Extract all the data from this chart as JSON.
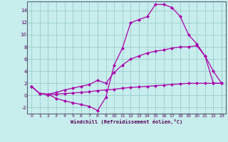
{
  "bg_color": "#c8eded",
  "line_color": "#aa00aa",
  "grid_color": "#99cccc",
  "xlim": [
    -0.5,
    23.5
  ],
  "ylim": [
    -3.0,
    15.5
  ],
  "xticks": [
    0,
    1,
    2,
    3,
    4,
    5,
    6,
    7,
    8,
    9,
    10,
    11,
    12,
    13,
    14,
    15,
    16,
    17,
    18,
    19,
    20,
    21,
    22,
    23
  ],
  "yticks": [
    -2,
    0,
    2,
    4,
    6,
    8,
    10,
    12,
    14
  ],
  "xlabel": "Windchill (Refroidissement éolien,°C)",
  "line1_x": [
    0,
    1,
    2,
    3,
    4,
    5,
    6,
    7,
    8,
    9,
    10,
    11,
    12,
    13,
    14,
    15,
    16,
    17,
    18,
    19,
    20,
    21,
    22,
    23
  ],
  "line1_y": [
    1.5,
    0.3,
    0.2,
    -0.5,
    -0.9,
    -1.2,
    -1.5,
    -1.8,
    -2.5,
    -0.3,
    5.0,
    7.8,
    12.0,
    12.5,
    13.0,
    15.0,
    15.0,
    14.5,
    13.0,
    10.0,
    8.5,
    6.5,
    4.0,
    2.0
  ],
  "line2_x": [
    0,
    1,
    2,
    3,
    4,
    5,
    6,
    7,
    8,
    9,
    10,
    11,
    12,
    13,
    14,
    15,
    16,
    17,
    18,
    19,
    20,
    21,
    22,
    23
  ],
  "line2_y": [
    1.5,
    0.3,
    0.2,
    0.5,
    0.9,
    1.2,
    1.5,
    1.8,
    2.5,
    2.0,
    3.8,
    5.0,
    6.0,
    6.5,
    7.0,
    7.3,
    7.5,
    7.8,
    8.0,
    8.0,
    8.2,
    6.5,
    2.0,
    2.0
  ],
  "line3_x": [
    0,
    1,
    2,
    3,
    4,
    5,
    6,
    7,
    8,
    9,
    10,
    11,
    12,
    13,
    14,
    15,
    16,
    17,
    18,
    19,
    20,
    21,
    22,
    23
  ],
  "line3_y": [
    1.5,
    0.3,
    0.1,
    0.2,
    0.3,
    0.4,
    0.5,
    0.6,
    0.8,
    0.9,
    1.0,
    1.2,
    1.3,
    1.4,
    1.5,
    1.6,
    1.7,
    1.8,
    1.9,
    2.0,
    2.0,
    2.0,
    2.0,
    2.0
  ]
}
